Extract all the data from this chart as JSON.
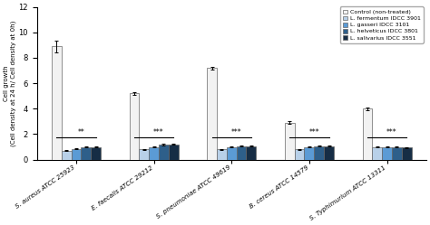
{
  "groups": [
    "S. aureus ATCC 25923",
    "E. faecalis ATCC 29212",
    "S. pneumoniae ATCC 49619",
    "B. cereus ATCC 14579",
    "S. Typhimurium ATCC 13311"
  ],
  "series_labels": [
    "Control (non-treated)",
    "L. fermentum IDCC 3901",
    "L. gasseri IDCC 3101",
    "L. helveticus IDCC 3801",
    "L. salivarius IDCC 3551"
  ],
  "bar_colors": [
    "#f2f2f2",
    "#b8d0e8",
    "#5b9bd5",
    "#2e5f8a",
    "#162d45"
  ],
  "bar_edge_colors": [
    "#666666",
    "#666666",
    "#666666",
    "#666666",
    "#666666"
  ],
  "values": [
    [
      8.9,
      0.7,
      0.85,
      1.0,
      1.0
    ],
    [
      5.2,
      0.8,
      1.0,
      1.2,
      1.2
    ],
    [
      7.2,
      0.8,
      1.0,
      1.05,
      1.05
    ],
    [
      2.9,
      0.8,
      1.0,
      1.05,
      1.05
    ],
    [
      4.0,
      1.0,
      1.0,
      1.0,
      0.95
    ]
  ],
  "errors": [
    [
      0.45,
      0.04,
      0.04,
      0.04,
      0.04
    ],
    [
      0.1,
      0.04,
      0.04,
      0.07,
      0.04
    ],
    [
      0.12,
      0.04,
      0.04,
      0.04,
      0.04
    ],
    [
      0.1,
      0.04,
      0.04,
      0.04,
      0.04
    ],
    [
      0.1,
      0.04,
      0.04,
      0.04,
      0.04
    ]
  ],
  "significance": [
    "**",
    "***",
    "***",
    "***",
    "***"
  ],
  "sig_y": [
    1.75,
    1.75,
    1.75,
    1.75,
    1.75
  ],
  "ylabel": "Cell growth\n(Cell density at 24 h/ Cell density at 0h)",
  "ylim": [
    0,
    12
  ],
  "yticks": [
    0,
    2,
    4,
    6,
    8,
    10,
    12
  ]
}
